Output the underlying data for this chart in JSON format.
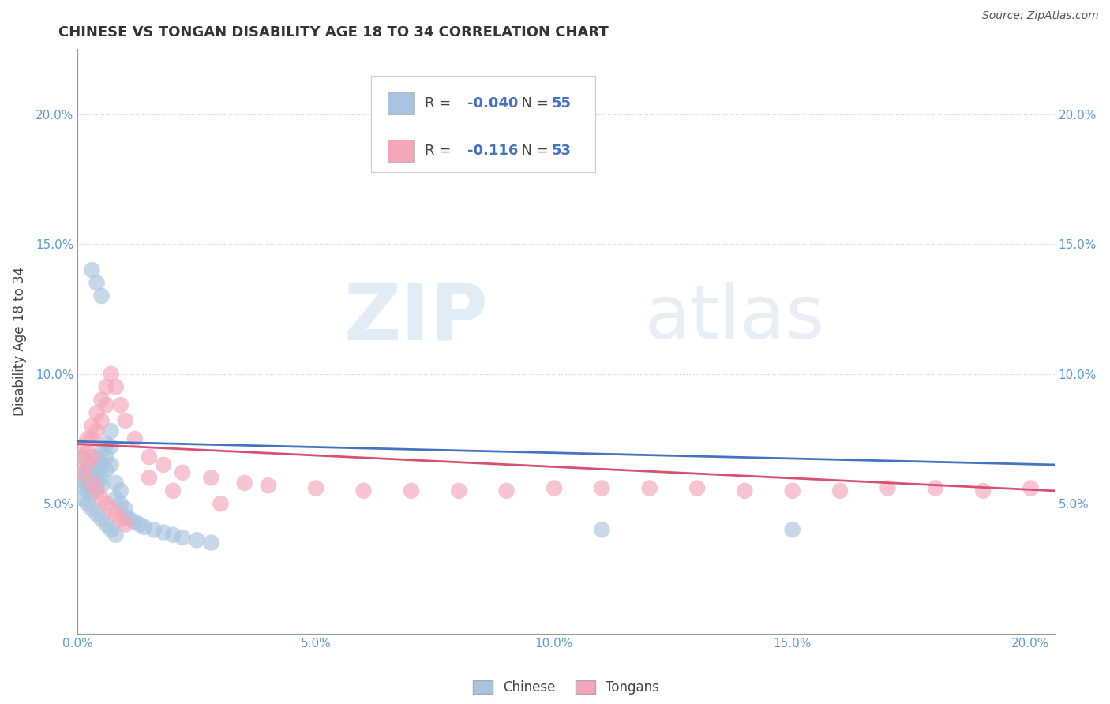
{
  "title": "CHINESE VS TONGAN DISABILITY AGE 18 TO 34 CORRELATION CHART",
  "ylabel": "Disability Age 18 to 34",
  "source_text": "Source: ZipAtlas.com",
  "xlim": [
    0.0,
    0.205
  ],
  "ylim": [
    0.0,
    0.225
  ],
  "xticks": [
    0.0,
    0.05,
    0.1,
    0.15,
    0.2
  ],
  "yticks": [
    0.05,
    0.1,
    0.15,
    0.2
  ],
  "xticklabels": [
    "0.0%",
    "5.0%",
    "10.0%",
    "15.0%",
    "20.0%"
  ],
  "yticklabels": [
    "5.0%",
    "10.0%",
    "15.0%",
    "20.0%"
  ],
  "right_yticklabels": [
    "5.0%",
    "10.0%",
    "15.0%",
    "20.0%"
  ],
  "legend_label1": "Chinese",
  "legend_label2": "Tongans",
  "R1": "-0.040",
  "N1": "55",
  "R2": "-0.116",
  "N2": "53",
  "chinese_color": "#a8c4e0",
  "tongan_color": "#f4a7b9",
  "line1_color": "#4472c4",
  "line2_color": "#d94f6e",
  "watermark_zip": "ZIP",
  "watermark_atlas": "atlas",
  "background_color": "#ffffff",
  "grid_color": "#cccccc",
  "chinese_x": [
    0.001,
    0.001,
    0.001,
    0.001,
    0.002,
    0.002,
    0.002,
    0.002,
    0.003,
    0.003,
    0.003,
    0.003,
    0.004,
    0.004,
    0.004,
    0.004,
    0.005,
    0.005,
    0.005,
    0.005,
    0.006,
    0.006,
    0.006,
    0.007,
    0.007,
    0.007,
    0.008,
    0.008,
    0.009,
    0.009,
    0.01,
    0.01,
    0.011,
    0.012,
    0.013,
    0.014,
    0.016,
    0.018,
    0.02,
    0.022,
    0.025,
    0.028,
    0.001,
    0.002,
    0.003,
    0.004,
    0.005,
    0.006,
    0.007,
    0.008,
    0.003,
    0.004,
    0.005,
    0.11,
    0.15
  ],
  "chinese_y": [
    0.068,
    0.062,
    0.059,
    0.057,
    0.063,
    0.06,
    0.058,
    0.055,
    0.065,
    0.06,
    0.057,
    0.054,
    0.068,
    0.063,
    0.059,
    0.056,
    0.07,
    0.065,
    0.06,
    0.057,
    0.073,
    0.068,
    0.063,
    0.078,
    0.072,
    0.065,
    0.058,
    0.052,
    0.055,
    0.05,
    0.048,
    0.045,
    0.044,
    0.043,
    0.042,
    0.041,
    0.04,
    0.039,
    0.038,
    0.037,
    0.036,
    0.035,
    0.052,
    0.05,
    0.048,
    0.046,
    0.044,
    0.042,
    0.04,
    0.038,
    0.14,
    0.135,
    0.13,
    0.04,
    0.04
  ],
  "tongan_x": [
    0.001,
    0.001,
    0.001,
    0.002,
    0.002,
    0.002,
    0.003,
    0.003,
    0.003,
    0.004,
    0.004,
    0.005,
    0.005,
    0.006,
    0.006,
    0.007,
    0.008,
    0.009,
    0.01,
    0.012,
    0.015,
    0.018,
    0.022,
    0.028,
    0.035,
    0.04,
    0.05,
    0.06,
    0.07,
    0.08,
    0.09,
    0.1,
    0.11,
    0.12,
    0.13,
    0.14,
    0.15,
    0.16,
    0.17,
    0.18,
    0.19,
    0.2,
    0.003,
    0.004,
    0.005,
    0.006,
    0.007,
    0.008,
    0.009,
    0.01,
    0.015,
    0.02,
    0.03
  ],
  "tongan_y": [
    0.072,
    0.068,
    0.062,
    0.075,
    0.07,
    0.065,
    0.08,
    0.075,
    0.068,
    0.085,
    0.078,
    0.09,
    0.082,
    0.095,
    0.088,
    0.1,
    0.095,
    0.088,
    0.082,
    0.075,
    0.068,
    0.065,
    0.062,
    0.06,
    0.058,
    0.057,
    0.056,
    0.055,
    0.055,
    0.055,
    0.055,
    0.056,
    0.056,
    0.056,
    0.056,
    0.055,
    0.055,
    0.055,
    0.056,
    0.056,
    0.055,
    0.056,
    0.058,
    0.055,
    0.052,
    0.05,
    0.048,
    0.046,
    0.044,
    0.042,
    0.06,
    0.055,
    0.05
  ]
}
